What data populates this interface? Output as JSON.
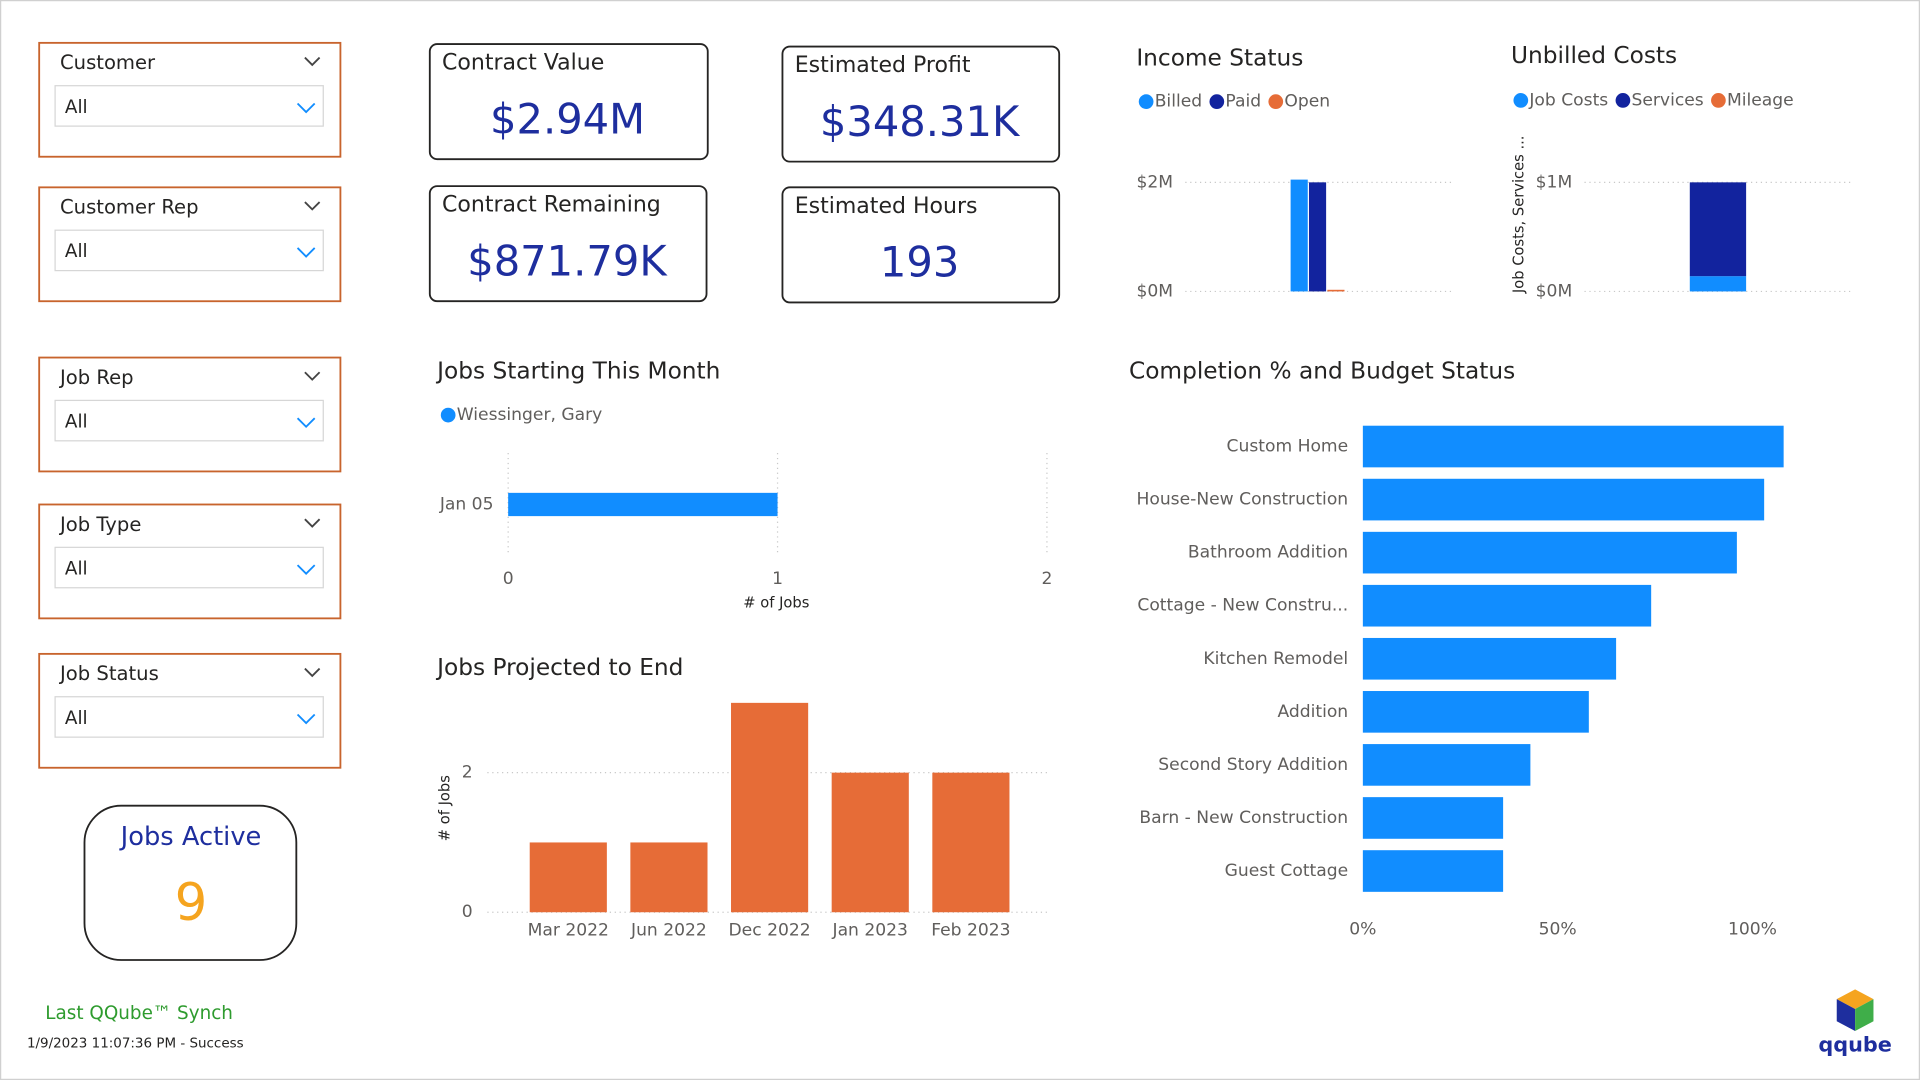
{
  "filters": [
    {
      "label": "Customer",
      "selection": "All"
    },
    {
      "label": "Customer Rep",
      "selection": "All"
    },
    {
      "label": "Job Rep",
      "selection": "All"
    },
    {
      "label": "Job Type",
      "selection": "All"
    },
    {
      "label": "Job Status",
      "selection": "All"
    }
  ],
  "kpis": [
    {
      "label": "Contract Value",
      "value": "$2.94M"
    },
    {
      "label": "Estimated Profit",
      "value": "$348.31K"
    },
    {
      "label": "Contract Remaining",
      "value": "$871.79K"
    },
    {
      "label": "Estimated Hours",
      "value": "193"
    }
  ],
  "jobs_active": {
    "label": "Jobs Active",
    "value": "9"
  },
  "sync": {
    "label": "Last QQube™ Synch",
    "status": "1/9/2023 11:07:36 PM - Success"
  },
  "logo": "qqube",
  "chart_data": [
    {
      "type": "bar",
      "title": "Income Status",
      "categories": [
        null
      ],
      "series": [
        {
          "name": "Billed",
          "color": "#118DFF",
          "values": [
            2050000
          ]
        },
        {
          "name": "Paid",
          "color": "#12239E",
          "values": [
            2000000
          ]
        },
        {
          "name": "Open",
          "color": "#E66C37",
          "values": [
            30000
          ]
        }
      ],
      "ylim": [
        0,
        2200000
      ],
      "yticks": [
        {
          "value": 0,
          "label": "$0M"
        },
        {
          "value": 2000000,
          "label": "$2M"
        }
      ],
      "grid": true,
      "legend": "top-left"
    },
    {
      "type": "bar",
      "stacked": true,
      "title": "Unbilled Costs",
      "y_label": "Job Costs, Services ...",
      "categories": [
        null
      ],
      "series": [
        {
          "name": "Job Costs",
          "color": "#118DFF",
          "values": [
            140000
          ]
        },
        {
          "name": "Services",
          "color": "#12239E",
          "values": [
            860000
          ]
        },
        {
          "name": "Mileage",
          "color": "#E66C37",
          "values": [
            0
          ]
        }
      ],
      "ylim": [
        0,
        1100000
      ],
      "yticks": [
        {
          "value": 0,
          "label": "$0M"
        },
        {
          "value": 1000000,
          "label": "$1M"
        }
      ],
      "grid": true,
      "legend": "top-left"
    },
    {
      "type": "hbar",
      "title": "Jobs Starting This Month",
      "x_label": "# of Jobs",
      "categories": [
        "Jan 05"
      ],
      "series": [
        {
          "name": "Wiessinger, Gary",
          "color": "#118DFF",
          "values": [
            1
          ]
        }
      ],
      "xlim": [
        0,
        2
      ],
      "xticks": [
        0,
        1,
        2
      ],
      "grid": true,
      "legend": "top-left"
    },
    {
      "type": "bar",
      "title": "Jobs Projected to End",
      "y_label": "# of Jobs",
      "categories": [
        "Mar 2022",
        "Jun 2022",
        "Dec 2022",
        "Jan 2023",
        "Feb 2023"
      ],
      "values": [
        1,
        1,
        3,
        2,
        2
      ],
      "color": "#E66C37",
      "ylim": [
        0,
        3
      ],
      "yticks": [
        0,
        2
      ],
      "grid": true
    },
    {
      "type": "hbar",
      "title": "Completion % and Budget Status",
      "categories": [
        "Custom Home",
        "House-New Construction",
        "Bathroom Addition",
        "Cottage - New Constru...",
        "Kitchen Remodel",
        "Addition",
        "Second Story Addition",
        "Barn - New Construction",
        "Guest Cottage"
      ],
      "values": [
        108,
        103,
        96,
        74,
        65,
        58,
        43,
        36,
        36
      ],
      "color": "#118DFF",
      "xlim": [
        0,
        110
      ],
      "xticks": [
        {
          "value": 0,
          "label": "0%"
        },
        {
          "value": 50,
          "label": "50%"
        },
        {
          "value": 100,
          "label": "100%"
        }
      ],
      "grid": false
    }
  ]
}
